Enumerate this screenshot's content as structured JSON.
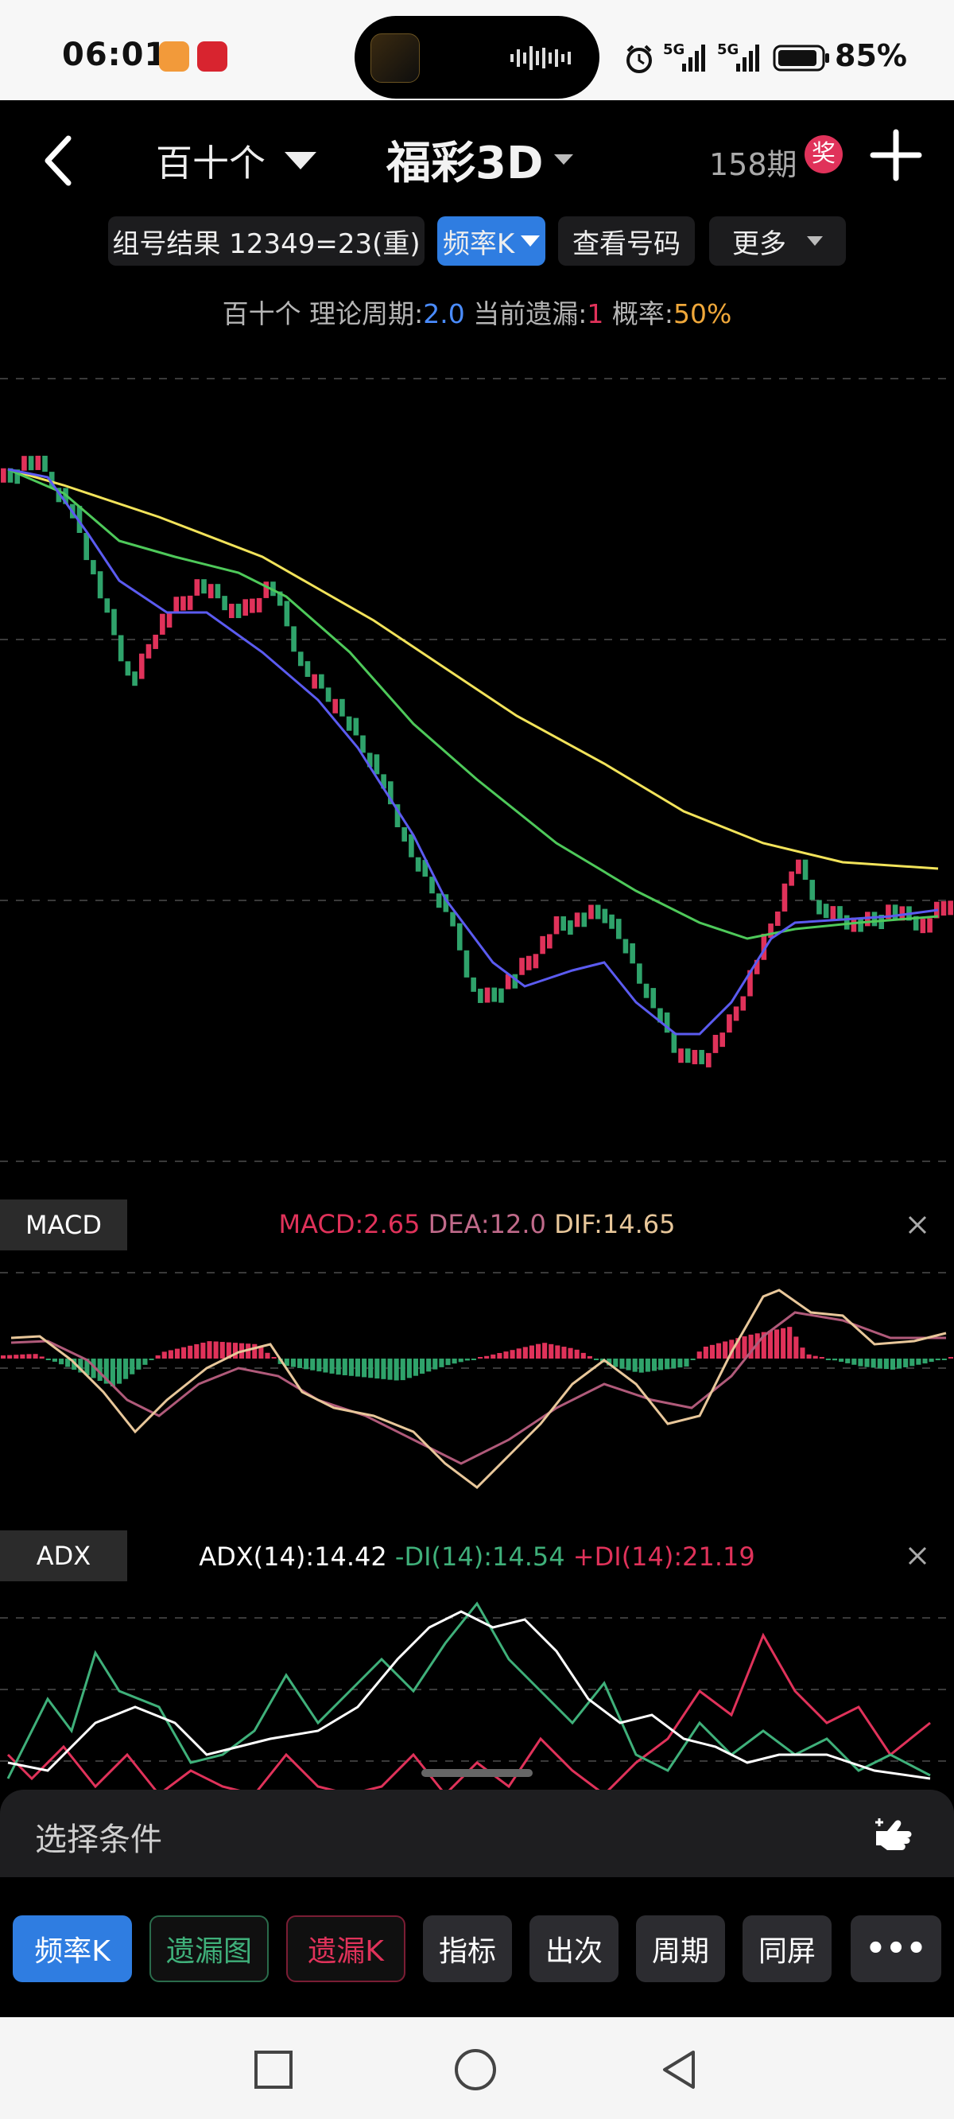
{
  "status_bar": {
    "time": "06:01",
    "battery": "85%",
    "signal_1": "5G",
    "signal_2": "5G"
  },
  "header": {
    "position": "百十个",
    "lottery": "福彩3D",
    "period_count": "158期",
    "prize_badge": "奖"
  },
  "toolbar": {
    "group_result": "组号结果 12349=23(重)",
    "freq_k": "频率K",
    "view_numbers": "查看号码",
    "more": "更多"
  },
  "theory": {
    "prefix": "百十个 理论周期:",
    "period_value": "2.0",
    "missing_label": " 当前遗漏:",
    "missing_value": "1",
    "prob_label": " 概率:",
    "prob_value": "50%"
  },
  "macd": {
    "panel_label": "MACD",
    "macd_text": "MACD:2.65",
    "dea_text": "DEA:12.0",
    "dif_text": "DIF:14.65"
  },
  "adx": {
    "panel_label": "ADX",
    "adx_text": "ADX(14):14.42",
    "mdi_text": "-DI(14):14.54",
    "pdi_text": "+DI(14):21.19"
  },
  "condition": {
    "label": "选择条件"
  },
  "tabs": [
    "频率K",
    "遗漏图",
    "遗漏K",
    "指标",
    "出次",
    "周期",
    "同屏",
    "•••"
  ],
  "colors": {
    "up": "#e0325a",
    "down": "#2fa36b",
    "ma_fast": "#5b5bf0",
    "ma_mid": "#4ec95a",
    "ma_slow": "#f2e35a",
    "accent": "#2f7de1"
  }
}
